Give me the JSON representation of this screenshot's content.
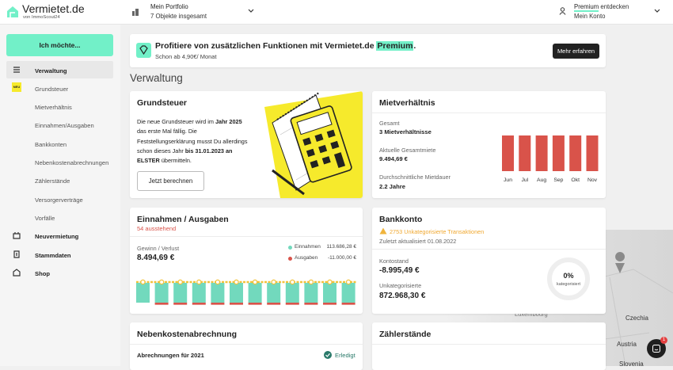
{
  "header": {
    "logo": "Vermietet.de",
    "logo_sub": "von ImmoScout24",
    "portfolio_title": "Mein Portfolio",
    "portfolio_sub": "7 Objekte insgesamt",
    "premium": "Premium",
    "premium_suffix": "entdecken",
    "account": "Mein Konto"
  },
  "sidebar": {
    "button": "Ich möchte...",
    "new_badge": "NEU",
    "items": [
      {
        "label": "Verwaltung",
        "bold": true,
        "active": true
      },
      {
        "label": "Grundsteuer",
        "bold": false
      },
      {
        "label": "Mietverhältnis",
        "bold": false
      },
      {
        "label": "Einnahmen/Ausgaben",
        "bold": false
      },
      {
        "label": "Bankkonten",
        "bold": false
      },
      {
        "label": "Nebenkostenabrechnungen",
        "bold": false
      },
      {
        "label": "Zählerstände",
        "bold": false
      },
      {
        "label": "Versorgerverträge",
        "bold": false
      },
      {
        "label": "Vorfälle",
        "bold": false
      },
      {
        "label": "Neuvermietung",
        "bold": true
      },
      {
        "label": "Stammdaten",
        "bold": true
      },
      {
        "label": "Shop",
        "bold": true
      }
    ]
  },
  "banner": {
    "title": "Profitiere von zusätzlichen Funktionen mit Vermietet.de",
    "title_highlight": "Premium",
    "title_end": ".",
    "subtitle": "Schon ab 4,90€/ Monat",
    "button": "Mehr erfahren"
  },
  "page_title": "Verwaltung",
  "grundsteuer": {
    "title": "Grundsteuer",
    "text": [
      {
        "t": "Die neue Grundsteuer wird im ",
        "bold": false
      },
      {
        "t": "Jahr 2025",
        "bold": true
      },
      {
        "t": " das erste Mal fällig. Die Feststellungserklärung musst Du allerdings schon dieses Jahr ",
        "bold": false
      },
      {
        "t": "bis 31.01.2023 an ELSTER",
        "bold": true
      },
      {
        "t": " übermitteln.",
        "bold": false
      }
    ],
    "button": "Jetzt berechnen"
  },
  "mietverhaeltnis": {
    "title": "Mietverhältnis",
    "total_label": "Gesamt",
    "total": "3 Mietverhältnisse",
    "rent_label": "Aktuelle Gesamtmiete",
    "rent": "9.494,69 €",
    "duration_label": "Durchschnittliche Mietdauer",
    "duration": "2.2 Jahre",
    "chart": {
      "type": "bar",
      "color": "#d9534a",
      "categories": [
        "Jun",
        "Jul",
        "Aug",
        "Sep",
        "Okt",
        "Nov"
      ],
      "values": [
        9494.69,
        9494.69,
        9494.69,
        9494.69,
        9494.69,
        9494.69
      ]
    }
  },
  "einnahmen": {
    "title": "Einnahmen / Ausgaben",
    "pending": "54 ausstehend",
    "profit_label": "Gewinn / Verlust",
    "profit": "8.494,69 €",
    "legend": [
      {
        "name": "Einnahmen",
        "value": "113.686,28 €",
        "color": "#72d9bd"
      },
      {
        "name": "Ausgaben",
        "value": "-11.000,00 €",
        "color": "#d9534a"
      }
    ],
    "chart": {
      "type": "bar",
      "income": [
        9473.86,
        9473.86,
        9473.86,
        9473.86,
        9473.86,
        9473.86,
        9473.86,
        9473.86,
        9473.86,
        9473.86,
        9473.86,
        9473.86
      ],
      "expenses": [
        0,
        -1000,
        -1000,
        -1000,
        -1000,
        -1000,
        -1000,
        -1000,
        -1000,
        -1000,
        -1000,
        -1000
      ],
      "line_color": "#f2c23a"
    }
  },
  "bankkonto": {
    "title": "Bankkonto",
    "warning": "2753 Unkategorisierte Transaktionen",
    "updated": "Zuletzt aktualisiert 01.08.2022",
    "balance_label": "Kontostand",
    "balance": "-8.995,49 €",
    "uncat_label": "Unkategorisierte",
    "uncat": "872.968,30 €",
    "donut": {
      "value": 0,
      "value_label": "0%",
      "label": "kategorisiert"
    }
  },
  "nebenkosten": {
    "title": "Nebenkostenabrechnung",
    "row": "Abrechnungen für 2021",
    "status": "Erledigt"
  },
  "zaehler": {
    "title": "Zählerstände"
  },
  "map_labels": [
    "Luxembourg",
    "Czechia",
    "Austria",
    "Slovenia"
  ],
  "chat_badge": "1"
}
